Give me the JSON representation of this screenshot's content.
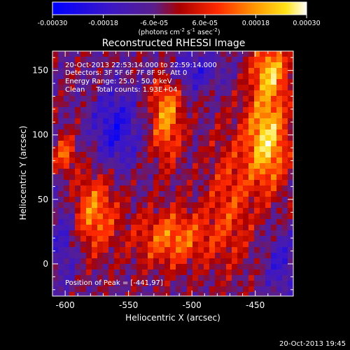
{
  "colorbar": {
    "tick_labels": [
      "-0.00030",
      "-0.00018",
      "-6.0e-05",
      "6.0e-05",
      "0.00018",
      "0.00030"
    ],
    "tick_values": [
      -0.0003,
      -0.00018,
      -6e-05,
      6e-05,
      0.00018,
      0.0003
    ],
    "range": [
      -0.0003,
      0.0003
    ],
    "units_prefix": "(photons cm",
    "units_exp1": "-2",
    "units_mid": " s",
    "units_exp2": "-1",
    "units_mid2": " asec",
    "units_exp3": "-2",
    "units_suffix": ")",
    "colormap": "blue-purple-red-orange-yellow-white"
  },
  "chart_data": {
    "type": "heatmap",
    "title": "Reconstructed RHESSI Image",
    "xlabel": "Heliocentric X (arcsec)",
    "ylabel": "Heliocentric Y (arcsec)",
    "xlim": [
      -610,
      -420
    ],
    "ylim": [
      -25,
      165
    ],
    "xticks": [
      -600,
      -550,
      -500,
      -450
    ],
    "xtick_labels": [
      "-600",
      "-550",
      "-500",
      "-450"
    ],
    "yticks": [
      0,
      50,
      100,
      150
    ],
    "ytick_labels": [
      "0",
      "50",
      "100",
      "150"
    ],
    "annotations": [
      "20-Oct-2013 22:53:14.000 to 22:59:14.000",
      "Detectors: 3F 5F 6F 7F 8F 9F, Att 0",
      "Energy Range: 25.0 - 50.0 keV",
      "Clean     Total counts: 1.93E+04",
      "Position of Peak = [-441,97]"
    ],
    "peak_position": [
      -441,
      97
    ]
  },
  "footer": {
    "timestamp": "20-Oct-2013 19:45"
  }
}
